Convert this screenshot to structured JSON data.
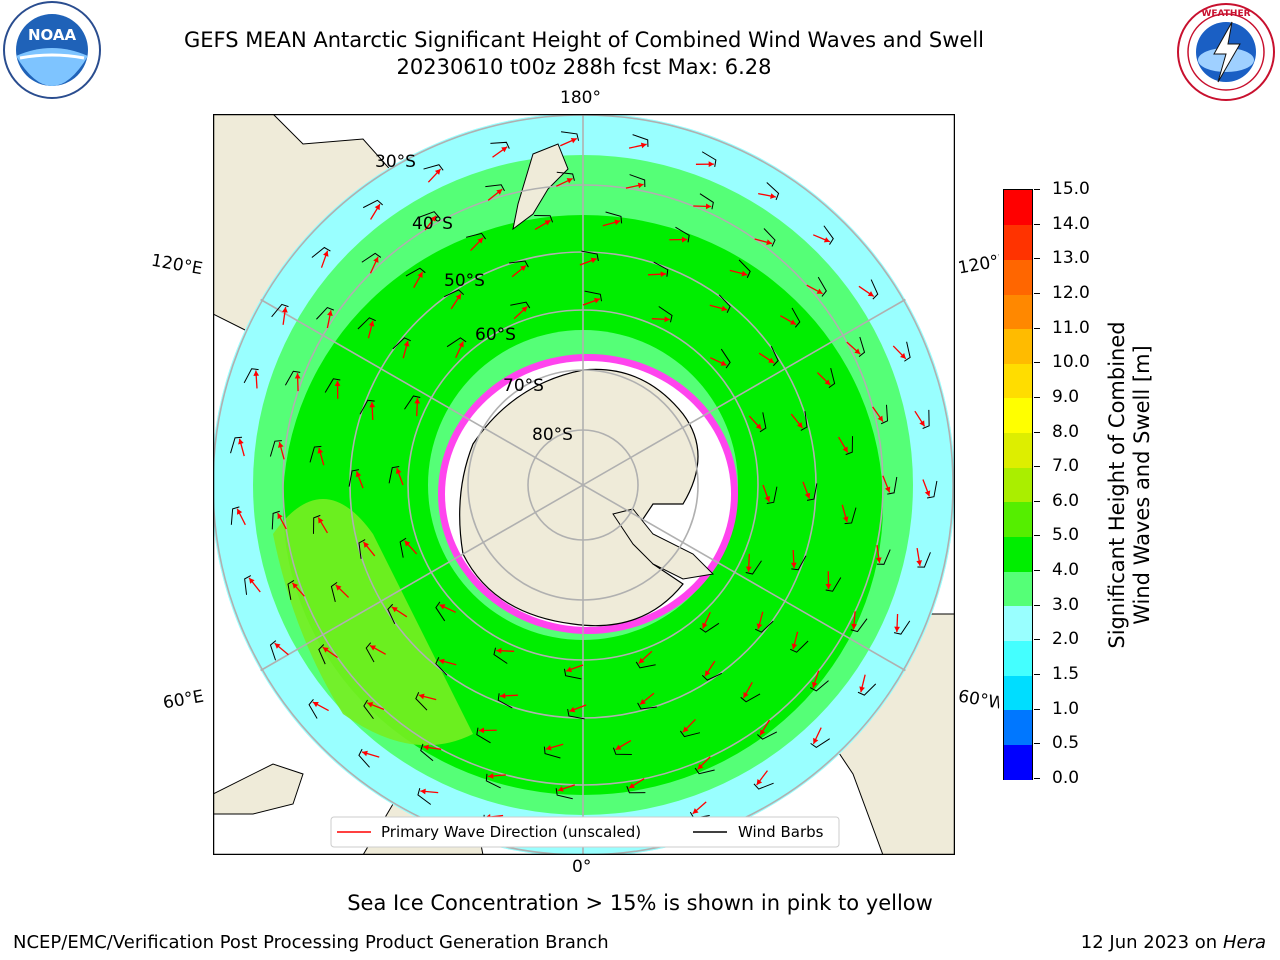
{
  "header": {
    "title_line1": "GEFS MEAN Antarctic Significant Height of Combined Wind Waves and Swell",
    "title_line2": "20230610 t00z 288h fcst   Max: 6.28"
  },
  "logos": {
    "left": {
      "name": "noaa-logo",
      "text": "NOAA",
      "ring_text": "NATIONAL OCEANIC AND ATMOSPHERIC ADMINISTRATION · U.S. DEPARTMENT OF COMMERCE"
    },
    "right": {
      "name": "nws-logo",
      "ring_text": "NATIONAL WEATHER SERVICE"
    }
  },
  "map": {
    "projection": "south-polar-stereographic",
    "longitude_labels": {
      "top": "180°",
      "bottom": "0°",
      "upper_left": "120°E",
      "lower_left": "60°E",
      "upper_right": "120°W",
      "lower_right": "60°W"
    },
    "latitude_labels": [
      "30°S",
      "40°S",
      "50°S",
      "60°S",
      "70°S",
      "80°S"
    ],
    "colors": {
      "land": "#efebd9",
      "ocean_background": "#ffffff",
      "grid": "#b0b0b0",
      "ice_edge": "#ff33ee",
      "arrow": "#ff0000",
      "barb": "#000000"
    },
    "legend": {
      "items": [
        {
          "label": "Primary Wave Direction (unscaled)",
          "color": "#ff0000"
        },
        {
          "label": "Wind Barbs",
          "color": "#000000"
        }
      ]
    }
  },
  "colorbar": {
    "label_line1": "Significant Height of Combined",
    "label_line2": "Wind Waves and Swell [m]",
    "ticks": [
      "0.0",
      "0.5",
      "1.0",
      "1.5",
      "2.0",
      "3.0",
      "4.0",
      "5.0",
      "6.0",
      "7.0",
      "8.0",
      "9.0",
      "10.0",
      "11.0",
      "12.0",
      "13.0",
      "14.0",
      "15.0"
    ],
    "colors": [
      "#0000ff",
      "#0077ff",
      "#00ddff",
      "#44ffff",
      "#99ffff",
      "#55ff77",
      "#00ee00",
      "#55ee00",
      "#aaee00",
      "#ddee00",
      "#ffff00",
      "#ffdd00",
      "#ffbb00",
      "#ff8800",
      "#ff6600",
      "#ff3300",
      "#ff0000"
    ]
  },
  "notes": {
    "sea_ice": "Sea Ice Concentration > 15% is shown in pink to yellow"
  },
  "footer": {
    "left": "NCEP/EMC/Verification Post Processing Product Generation Branch",
    "right_date": "12 Jun 2023 on",
    "right_host": "Hera"
  }
}
